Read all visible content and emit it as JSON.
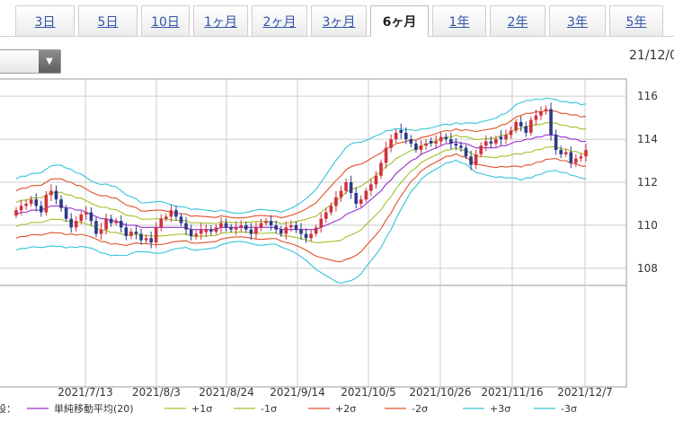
{
  "tabs": [
    {
      "label": "3日",
      "active": false
    },
    {
      "label": "5日",
      "active": false
    },
    {
      "label": "10日",
      "active": false
    },
    {
      "label": "1ヶ月",
      "active": false
    },
    {
      "label": "2ヶ月",
      "active": false
    },
    {
      "label": "3ヶ月",
      "active": false
    },
    {
      "label": "6ヶ月",
      "active": true
    },
    {
      "label": "1年",
      "active": false
    },
    {
      "label": "2年",
      "active": false
    },
    {
      "label": "3年",
      "active": false
    },
    {
      "label": "5年",
      "active": false
    }
  ],
  "date_label": "21/12/0",
  "select_icon": "triangle-down-icon",
  "colors": {
    "up_candle": "#d0303c",
    "down_candle": "#2a3a8a",
    "sma": "#9a2fcf",
    "sigma1": "#a3c02a",
    "sigma2": "#e0512a",
    "sigma3": "#35c4d8",
    "grid": "#cccccc"
  },
  "chart_data": {
    "type": "candlestick",
    "ylim": [
      107.2,
      116.8
    ],
    "yticks": [
      "116",
      "114",
      "112",
      "110",
      "108"
    ],
    "xtick_labels": [
      "2021/7/13",
      "2021/8/3",
      "2021/8/24",
      "2021/9/14",
      "2021/10/5",
      "2021/10/26",
      "2021/11/16",
      "2021/12/7"
    ],
    "close": [
      110.7,
      110.9,
      111.0,
      111.2,
      110.9,
      110.6,
      111.4,
      111.6,
      111.2,
      110.8,
      110.3,
      109.9,
      110.2,
      110.5,
      110.6,
      110.2,
      109.6,
      109.8,
      110.3,
      110.1,
      110.2,
      109.9,
      109.5,
      109.7,
      109.6,
      109.3,
      109.4,
      109.2,
      109.9,
      110.3,
      110.4,
      110.7,
      110.4,
      110.1,
      109.8,
      109.5,
      109.6,
      109.8,
      109.8,
      109.7,
      109.9,
      110.1,
      109.9,
      109.8,
      109.9,
      110.0,
      109.8,
      109.6,
      109.9,
      110.1,
      110.2,
      110.0,
      109.8,
      109.6,
      109.9,
      110.0,
      109.8,
      109.6,
      109.4,
      109.6,
      109.9,
      110.3,
      110.6,
      110.9,
      111.3,
      111.6,
      112.0,
      111.5,
      111.0,
      111.2,
      111.6,
      111.9,
      112.3,
      112.9,
      113.6,
      114.0,
      114.3,
      114.3,
      114.0,
      113.8,
      113.5,
      113.7,
      113.8,
      113.8,
      113.9,
      114.1,
      114.0,
      113.8,
      113.7,
      113.6,
      113.2,
      112.8,
      113.3,
      113.7,
      113.9,
      113.8,
      114.0,
      114.0,
      114.2,
      114.4,
      114.8,
      114.6,
      114.3,
      114.9,
      115.1,
      115.3,
      115.4,
      114.2,
      113.5,
      113.3,
      113.4,
      112.9,
      113.1,
      113.2,
      113.5
    ],
    "ma20": [
      110.5,
      110.6,
      110.6,
      110.7,
      110.7,
      110.7,
      110.8,
      110.9,
      110.9,
      110.9,
      110.8,
      110.8,
      110.7,
      110.7,
      110.6,
      110.5,
      110.4,
      110.3,
      110.3,
      110.2,
      110.2,
      110.1,
      110.0,
      110.0,
      110.0,
      109.9,
      109.9,
      109.9,
      109.9,
      109.9,
      109.9,
      109.9,
      109.9,
      109.9,
      109.9,
      109.8,
      109.8,
      109.8,
      109.8,
      109.8,
      109.8,
      109.9,
      109.9,
      109.9,
      109.9,
      109.9,
      109.9,
      109.9,
      109.9,
      109.9,
      109.9,
      109.9,
      109.9,
      109.8,
      109.8,
      109.8,
      109.8,
      109.8,
      109.8,
      109.8,
      109.8,
      109.9,
      110.0,
      110.1,
      110.2,
      110.3,
      110.5,
      110.6,
      110.7,
      110.8,
      111.0,
      111.2,
      111.4,
      111.6,
      111.9,
      112.1,
      112.4,
      112.6,
      112.8,
      113.0,
      113.1,
      113.3,
      113.4,
      113.5,
      113.6,
      113.7,
      113.8,
      113.8,
      113.9,
      113.8,
      113.8,
      113.7,
      113.6,
      113.6,
      113.6,
      113.6,
      113.6,
      113.7,
      113.7,
      113.8,
      113.9,
      113.9,
      114.0,
      114.0,
      114.1,
      114.1,
      114.2,
      114.2,
      114.2,
      114.1,
      114.1,
      114.0,
      114.0,
      113.9,
      113.9
    ],
    "sd": [
      0.55,
      0.56,
      0.56,
      0.57,
      0.57,
      0.58,
      0.6,
      0.62,
      0.63,
      0.63,
      0.62,
      0.6,
      0.58,
      0.56,
      0.54,
      0.52,
      0.52,
      0.53,
      0.54,
      0.54,
      0.53,
      0.5,
      0.47,
      0.44,
      0.41,
      0.38,
      0.38,
      0.39,
      0.4,
      0.4,
      0.38,
      0.35,
      0.33,
      0.32,
      0.31,
      0.31,
      0.32,
      0.31,
      0.3,
      0.29,
      0.28,
      0.27,
      0.25,
      0.23,
      0.22,
      0.22,
      0.23,
      0.25,
      0.27,
      0.28,
      0.27,
      0.26,
      0.26,
      0.27,
      0.3,
      0.33,
      0.37,
      0.42,
      0.48,
      0.55,
      0.62,
      0.7,
      0.78,
      0.86,
      0.94,
      1.0,
      1.04,
      1.06,
      1.05,
      1.02,
      0.98,
      0.95,
      0.92,
      0.88,
      0.83,
      0.77,
      0.7,
      0.62,
      0.55,
      0.48,
      0.43,
      0.39,
      0.36,
      0.34,
      0.33,
      0.32,
      0.3,
      0.29,
      0.29,
      0.3,
      0.32,
      0.35,
      0.38,
      0.4,
      0.42,
      0.44,
      0.46,
      0.48,
      0.5,
      0.53,
      0.57,
      0.6,
      0.6,
      0.6,
      0.59,
      0.58,
      0.57,
      0.56,
      0.55,
      0.55,
      0.55,
      0.56,
      0.57,
      0.57,
      0.58
    ],
    "legend_prefix": "設：",
    "legend": [
      {
        "label": "単純移動平均(20)",
        "color": "#9a2fcf"
      },
      {
        "label": "+1σ",
        "color": "#a3c02a"
      },
      {
        "label": "-1σ",
        "color": "#a3c02a"
      },
      {
        "label": "+2σ",
        "color": "#e0512a"
      },
      {
        "label": "-2σ",
        "color": "#e0512a"
      },
      {
        "label": "+3σ",
        "color": "#35c4d8"
      },
      {
        "label": "-3σ",
        "color": "#35c4d8"
      }
    ]
  }
}
